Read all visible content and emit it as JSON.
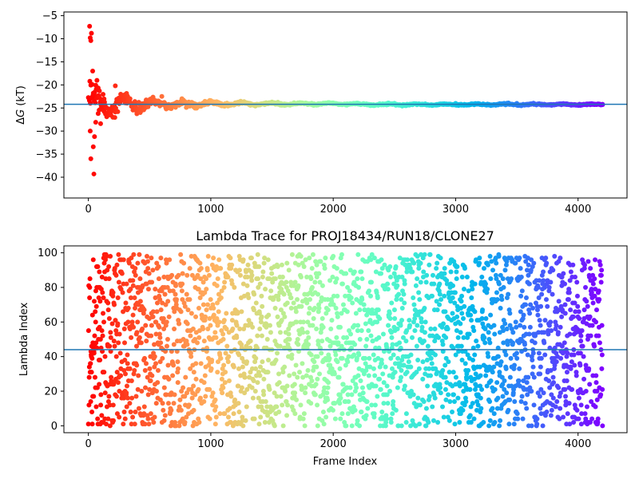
{
  "chart_data": [
    {
      "type": "scatter",
      "title": "",
      "xlabel": "",
      "ylabel": "ΔG (kT)",
      "ylabel_main": "Δ",
      "ylabel_italic": "G",
      "ylabel_unit": " (kT)",
      "xlim": [
        -200,
        4400
      ],
      "ylim": [
        -44.5,
        -4.2
      ],
      "x_ticks": [
        0,
        1000,
        2000,
        3000,
        4000
      ],
      "y_ticks": [
        -5,
        -10,
        -15,
        -20,
        -25,
        -30,
        -35,
        -40
      ],
      "hline": -24.2,
      "hline_color": "#1f77b4",
      "colormap": "rainbow_r",
      "frames": 4200,
      "marker_size": 3,
      "grid": false,
      "series": [
        {
          "description": "running free energy estimate per frame, colored by frame index",
          "x_range": [
            0,
            4200
          ],
          "early_points": [
            [
              10,
              -7.3
            ],
            [
              15,
              -9.8
            ],
            [
              20,
              -10.4
            ],
            [
              25,
              -8.8
            ],
            [
              30,
              -19.9
            ],
            [
              35,
              -17.0
            ],
            [
              40,
              -33.4
            ],
            [
              45,
              -39.3
            ],
            [
              20,
              -36.0
            ],
            [
              15,
              -30.0
            ],
            [
              50,
              -31.2
            ],
            [
              60,
              -28.1
            ],
            [
              70,
              -19.0
            ],
            [
              80,
              -26.2
            ],
            [
              90,
              -21.3
            ],
            [
              100,
              -28.4
            ],
            [
              110,
              -23.6
            ],
            [
              130,
              -25.8
            ],
            [
              150,
              -26.9
            ],
            [
              200,
              -27.0
            ],
            [
              220,
              -20.2
            ],
            [
              300,
              -22.1
            ],
            [
              400,
              -25.5
            ],
            [
              600,
              -22.5
            ],
            [
              800,
              -24.9
            ],
            [
              1000,
              -23.4
            ],
            [
              1200,
              -23.9
            ],
            [
              1500,
              -23.7
            ],
            [
              2000,
              -23.9
            ],
            [
              2500,
              -24.2
            ],
            [
              3000,
              -24.0
            ],
            [
              3500,
              -24.0
            ],
            [
              4200,
              -24.2
            ]
          ],
          "converged_value": -24.2
        }
      ]
    },
    {
      "type": "scatter",
      "title": "Lambda Trace for PROJ18434/RUN18/CLONE27",
      "xlabel": "Frame Index",
      "ylabel": "Lambda Index",
      "xlim": [
        -200,
        4400
      ],
      "ylim": [
        -4,
        104
      ],
      "x_ticks": [
        0,
        1000,
        2000,
        3000,
        4000
      ],
      "y_ticks": [
        0,
        20,
        40,
        60,
        80,
        100
      ],
      "hline": 44,
      "hline_color": "#1f77b4",
      "colormap": "rainbow_r",
      "frames": 4200,
      "lambda_range": [
        0,
        99
      ],
      "marker_size": 3,
      "grid": false,
      "series": [
        {
          "description": "lambda index visited at each frame, uniformly spread over 0-99, colored by frame index"
        }
      ]
    }
  ]
}
